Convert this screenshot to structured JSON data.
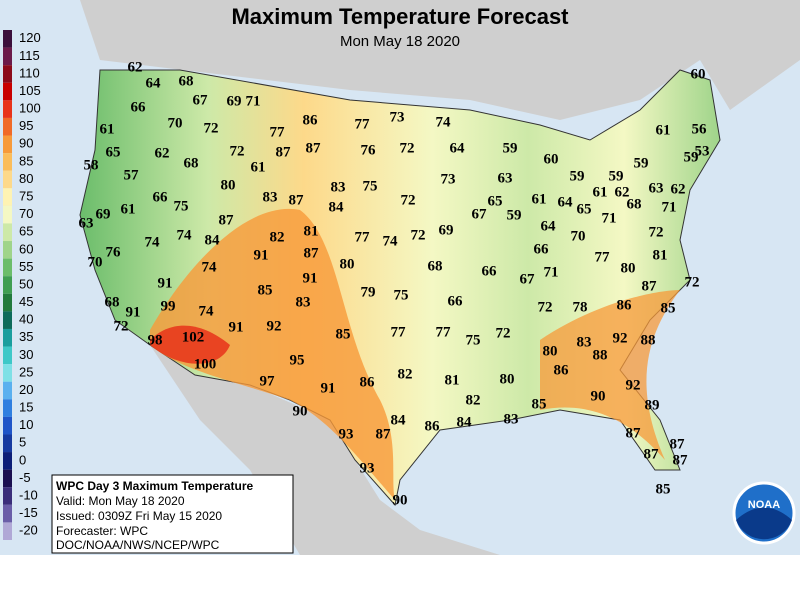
{
  "header": {
    "title": "Maximum Temperature Forecast",
    "subtitle": "Mon May 18 2020"
  },
  "legend": {
    "values": [
      120,
      115,
      110,
      105,
      100,
      95,
      90,
      85,
      80,
      75,
      70,
      65,
      60,
      55,
      50,
      45,
      40,
      35,
      30,
      25,
      20,
      15,
      10,
      5,
      0,
      -5,
      -10,
      -15,
      -20
    ],
    "colors": [
      "#3b0f3b",
      "#6b1a4a",
      "#8b0a1a",
      "#c80000",
      "#e8331a",
      "#f06a28",
      "#f79a3a",
      "#fbbd5a",
      "#fdd98a",
      "#fef3b3",
      "#f4f8c4",
      "#cde9a8",
      "#9fd48a",
      "#6bbd6b",
      "#3f9e52",
      "#227a3c",
      "#0d6b5a",
      "#1a9e9e",
      "#3ec8c8",
      "#7ee0e6",
      "#5ab0ef",
      "#2f7fe0",
      "#1f55c8",
      "#163aa0",
      "#0d1f78",
      "#1a0f50",
      "#3a2e7a",
      "#6a5ea8",
      "#b0a8d6"
    ]
  },
  "info": {
    "title": "WPC Day 3 Maximum Temperature",
    "valid": "Valid: Mon May 18 2020",
    "issued": "Issued: 0309Z Fri May 15 2020",
    "forecaster": "Forecaster: WPC",
    "agency": "DOC/NOAA/NWS/NCEP/WPC"
  },
  "logo": {
    "label": "NOAA"
  },
  "map": {
    "temperatures": [
      62,
      64,
      68,
      66,
      67,
      69,
      71,
      70,
      72,
      61,
      65,
      62,
      68,
      72,
      77,
      86,
      87,
      87,
      61,
      58,
      57,
      80,
      66,
      75,
      83,
      87,
      83,
      84,
      75,
      69,
      61,
      63,
      87,
      74,
      74,
      84,
      82,
      81,
      77,
      74,
      72,
      69,
      76,
      70,
      91,
      87,
      80,
      74,
      91,
      68,
      99,
      91,
      72,
      74,
      85,
      83,
      79,
      75,
      91,
      68,
      66,
      66,
      98,
      102,
      100,
      91,
      92,
      85,
      77,
      77,
      75,
      72,
      95,
      97,
      91,
      86,
      82,
      81,
      80,
      90,
      93,
      87,
      84,
      86,
      84,
      82,
      83,
      85,
      93,
      90,
      86,
      80,
      83,
      88,
      92,
      88,
      90,
      92,
      89,
      87,
      87,
      87,
      87,
      85,
      72,
      78,
      86,
      85,
      87,
      72,
      80,
      81,
      77,
      72,
      71,
      68,
      71,
      70,
      66,
      64,
      67,
      71,
      65,
      67,
      59,
      61,
      64,
      65,
      61,
      62,
      63,
      62,
      59,
      59,
      60,
      63,
      59,
      64,
      73,
      72,
      72,
      76,
      77,
      73,
      74,
      61,
      56,
      59,
      53,
      60,
      59
    ]
  }
}
